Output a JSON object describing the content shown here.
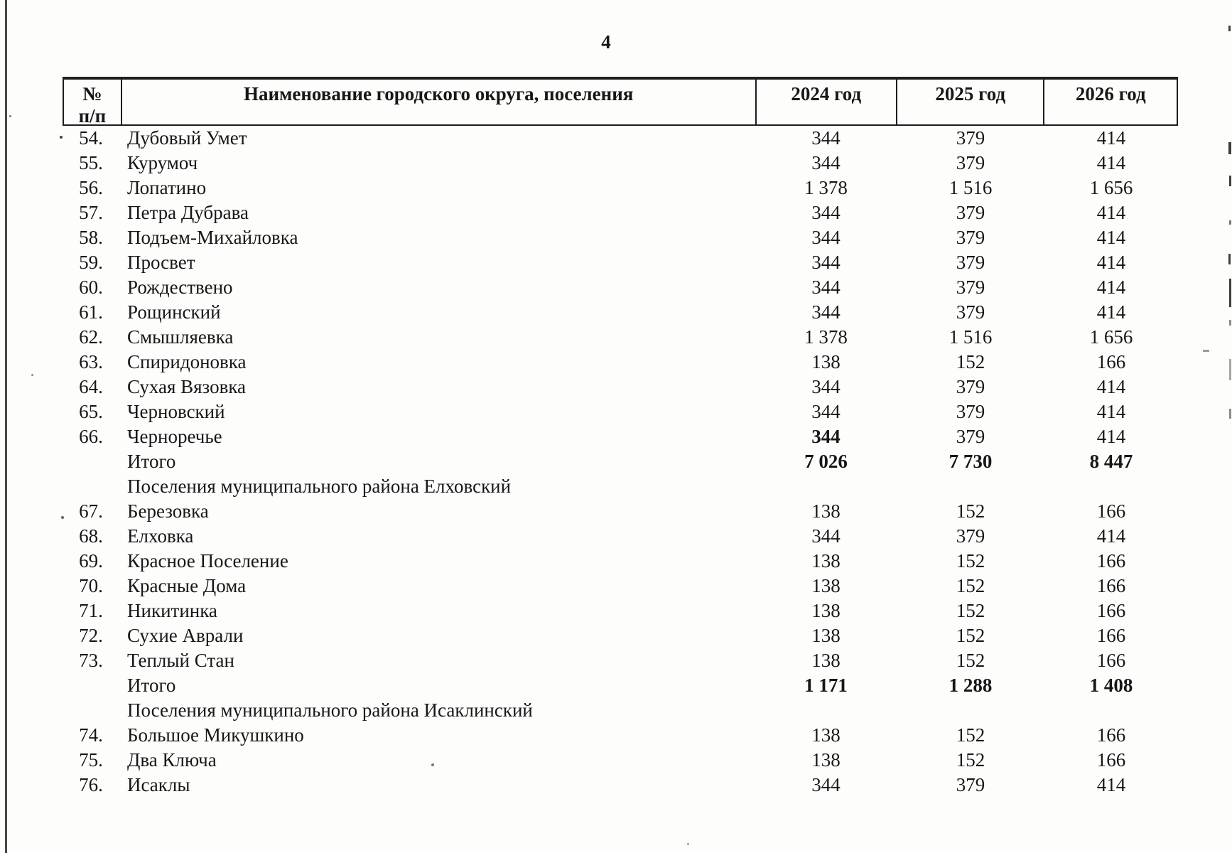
{
  "page": {
    "number": "4"
  },
  "table": {
    "headers": {
      "num_line1": "№",
      "num_line2": "п/п",
      "name": "Наименование городского округа, поселения",
      "y2024": "2024 год",
      "y2025": "2025 год",
      "y2026": "2026 год"
    },
    "rows": [
      {
        "style": "data",
        "num": "54.",
        "name": "Дубовый Умет",
        "v2024": "344",
        "v2025": "379",
        "v2026": "414"
      },
      {
        "style": "data",
        "num": "55.",
        "name": "Курумоч",
        "v2024": "344",
        "v2025": "379",
        "v2026": "414"
      },
      {
        "style": "data",
        "num": "56.",
        "name": "Лопатино",
        "v2024": "1 378",
        "v2025": "1 516",
        "v2026": "1 656"
      },
      {
        "style": "data",
        "num": "57.",
        "name": "Петра Дубрава",
        "v2024": "344",
        "v2025": "379",
        "v2026": "414"
      },
      {
        "style": "data",
        "num": "58.",
        "name": "Подъем-Михайловка",
        "v2024": "344",
        "v2025": "379",
        "v2026": "414"
      },
      {
        "style": "data",
        "num": "59.",
        "name": "Просвет",
        "v2024": "344",
        "v2025": "379",
        "v2026": "414"
      },
      {
        "style": "data",
        "num": "60.",
        "name": "Рождествено",
        "v2024": "344",
        "v2025": "379",
        "v2026": "414"
      },
      {
        "style": "data",
        "num": "61.",
        "name": "Рощинский",
        "v2024": "344",
        "v2025": "379",
        "v2026": "414"
      },
      {
        "style": "data",
        "num": "62.",
        "name": "Смышляевка",
        "v2024": "1 378",
        "v2025": "1 516",
        "v2026": "1 656"
      },
      {
        "style": "data",
        "num": "63.",
        "name": "Спиридоновка",
        "v2024": "138",
        "v2025": "152",
        "v2026": "166"
      },
      {
        "style": "data",
        "num": "64.",
        "name": "Сухая Вязовка",
        "v2024": "344",
        "v2025": "379",
        "v2026": "414"
      },
      {
        "style": "data",
        "num": "65.",
        "name": "Черновский",
        "v2024": "344",
        "v2025": "379",
        "v2026": "414"
      },
      {
        "style": "data",
        "num": "66.",
        "name": "Черноречье",
        "v2024": "344",
        "v2025": "379",
        "v2026": "414",
        "bold_2024": true
      },
      {
        "style": "total",
        "num": null,
        "name": "Итого",
        "v2024": "7 026",
        "v2025": "7 730",
        "v2026": "8 447"
      },
      {
        "style": "section",
        "num": null,
        "name": "Поселения муниципального района Елховский",
        "v2024": null,
        "v2025": null,
        "v2026": null
      },
      {
        "style": "data",
        "num": "67.",
        "name": "Березовка",
        "v2024": "138",
        "v2025": "152",
        "v2026": "166"
      },
      {
        "style": "data",
        "num": "68.",
        "name": "Елховка",
        "v2024": "344",
        "v2025": "379",
        "v2026": "414"
      },
      {
        "style": "data",
        "num": "69.",
        "name": "Красное Поселение",
        "v2024": "138",
        "v2025": "152",
        "v2026": "166"
      },
      {
        "style": "data",
        "num": "70.",
        "name": "Красные Дома",
        "v2024": "138",
        "v2025": "152",
        "v2026": "166"
      },
      {
        "style": "data",
        "num": "71.",
        "name": "Никитинка",
        "v2024": "138",
        "v2025": "152",
        "v2026": "166"
      },
      {
        "style": "data",
        "num": "72.",
        "name": "Сухие Аврали",
        "v2024": "138",
        "v2025": "152",
        "v2026": "166"
      },
      {
        "style": "data",
        "num": "73.",
        "name": "Теплый Стан",
        "v2024": "138",
        "v2025": "152",
        "v2026": "166"
      },
      {
        "style": "total",
        "num": null,
        "name": "Итого",
        "v2024": "1 171",
        "v2025": "1 288",
        "v2026": "1 408"
      },
      {
        "style": "section",
        "num": null,
        "name": "Поселения муниципального района Исаклинский",
        "v2024": null,
        "v2025": null,
        "v2026": null
      },
      {
        "style": "data",
        "num": "74.",
        "name": "Большое Микушкино",
        "v2024": "138",
        "v2025": "152",
        "v2026": "166"
      },
      {
        "style": "data",
        "num": "75.",
        "name": "Два Ключа",
        "v2024": "138",
        "v2025": "152",
        "v2026": "166"
      },
      {
        "style": "data",
        "num": "76.",
        "name": "Исаклы",
        "v2024": "344",
        "v2025": "379",
        "v2026": "414"
      }
    ]
  },
  "colors": {
    "ink": "#171717",
    "paper": "#fdfdfc",
    "border": "#1e1e1e"
  }
}
